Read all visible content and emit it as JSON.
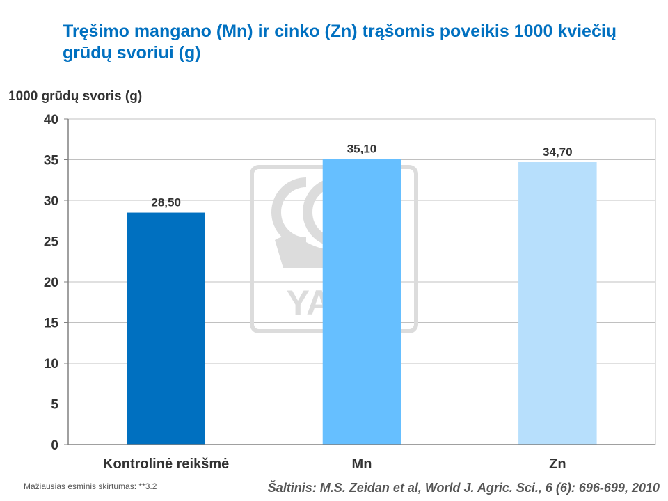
{
  "chart_data": {
    "type": "bar",
    "title": "Tręšimo mangano (Mn) ir cinko (Zn) trąšomis poveikis 1000 kviečių grūdų svoriui (g)",
    "ylabel": "1000 grūdų svoris (g)",
    "xlabel": "",
    "categories": [
      "Kontrolinė reikšmė",
      "Mn",
      "Zn"
    ],
    "values": [
      28.5,
      35.1,
      34.7
    ],
    "value_labels": [
      "28,50",
      "35,10",
      "34,70"
    ],
    "bar_colors": [
      "#0070c0",
      "#66bfff",
      "#b7dffc"
    ],
    "ylim": [
      0,
      40
    ],
    "yticks": [
      0,
      5,
      10,
      15,
      20,
      25,
      30,
      35,
      40
    ],
    "grid": true,
    "legend": "none"
  },
  "watermark": {
    "text": "YARA",
    "color": "#d9d9d9"
  },
  "footnote": "Mažiausias esminis skirtumas: **3.2",
  "source": "Šaltinis: M.S. Zeidan et al, World J. Agric. Sci., 6 (6): 696-699, 2010"
}
